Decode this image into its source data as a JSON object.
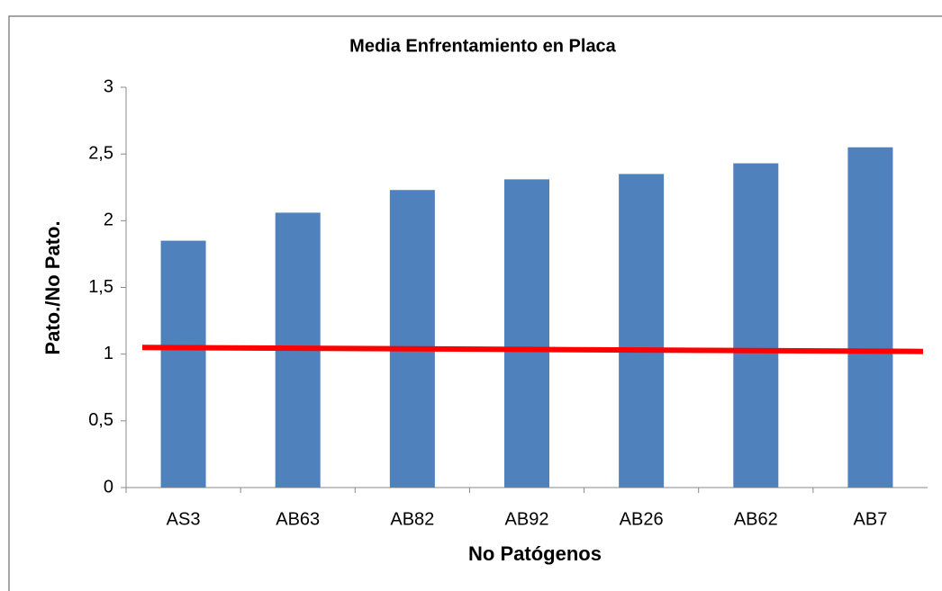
{
  "chart_data": {
    "type": "bar",
    "title": "Media Enfrentamiento en Placa",
    "x_label": "No Patógenos",
    "y_label": "Pato./No Pato.",
    "categories": [
      "AS3",
      "AB63",
      "AB82",
      "AB92",
      "AB26",
      "AB62",
      "AB7"
    ],
    "values": [
      1.85,
      2.06,
      2.23,
      2.31,
      2.35,
      2.43,
      2.55
    ],
    "color": "#4f81bd",
    "ylim": [
      0,
      3
    ],
    "yticks": [
      0,
      {
        "value": 0.5,
        "label": "0,5"
      },
      1,
      {
        "value": 1.5,
        "label": "1,5"
      },
      2,
      {
        "value": 2.5,
        "label": "2,5"
      },
      3
    ],
    "grid": false,
    "reference_line": {
      "values": [
        1.05,
        1.02
      ],
      "color": "#ff0000"
    }
  }
}
